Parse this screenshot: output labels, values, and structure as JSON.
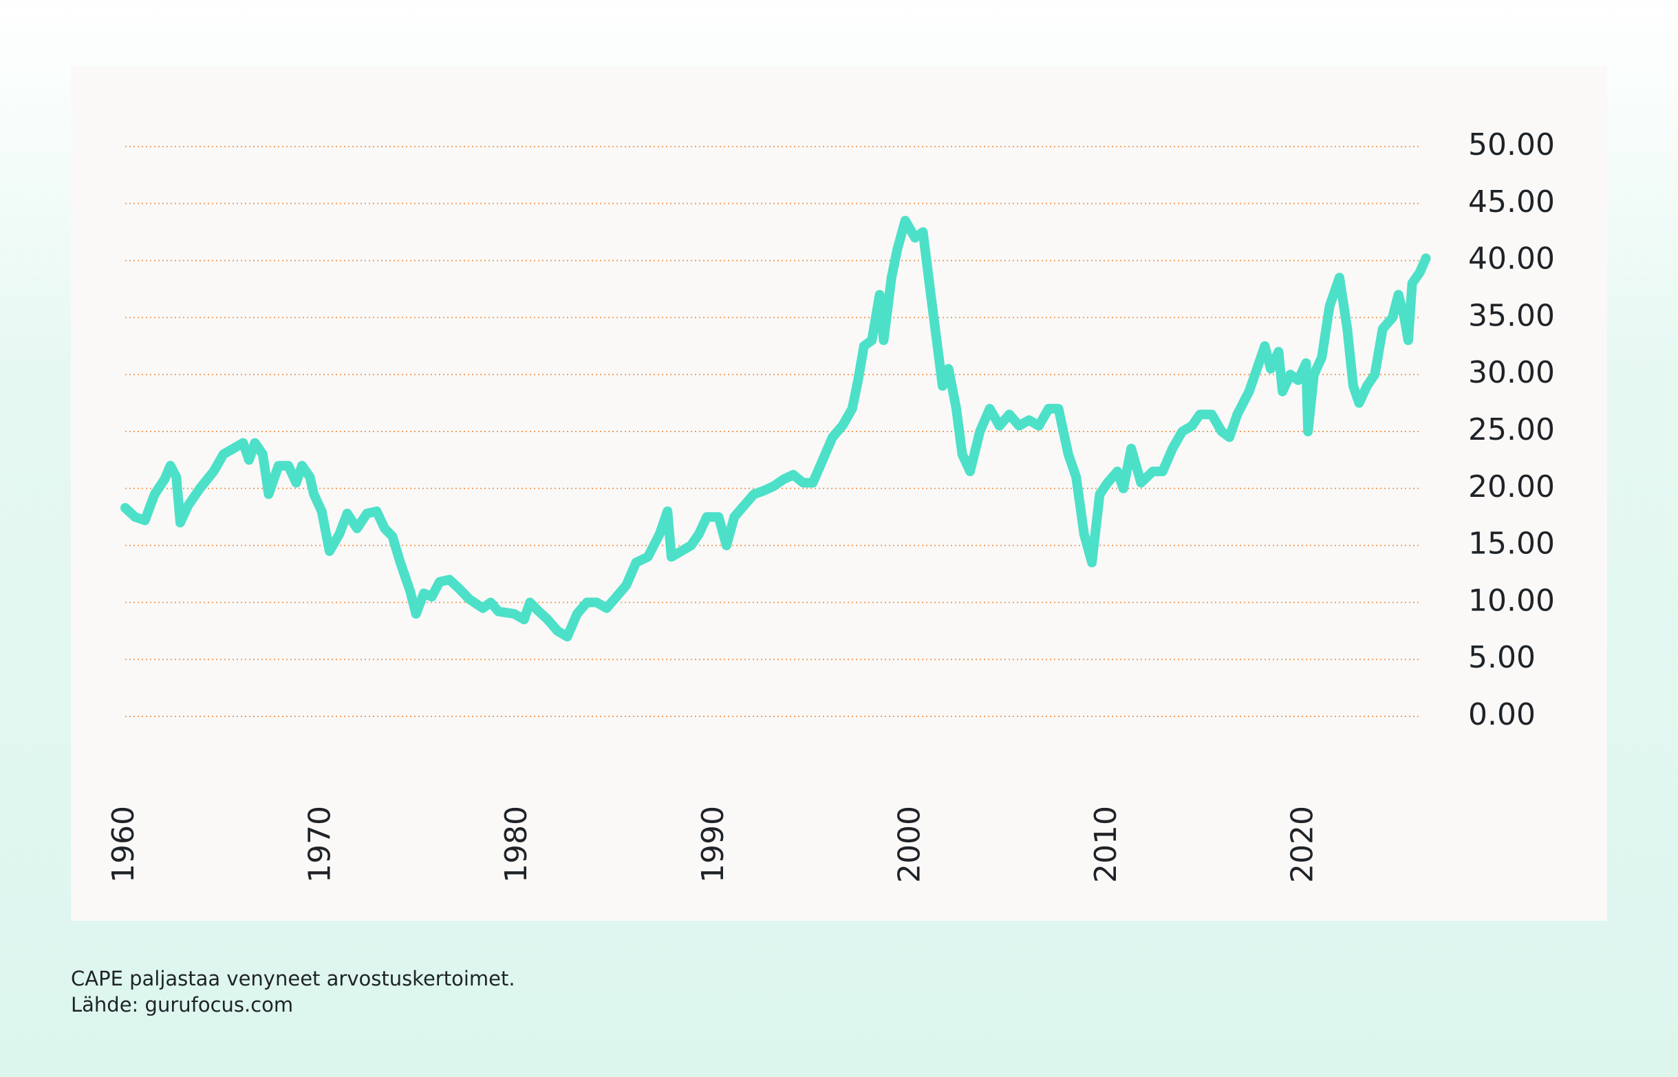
{
  "chart_data": {
    "type": "line",
    "notes": [
      "CAPE paljastaa venyneet arvostuskertoimet.",
      "Lähde: gurufocus.com"
    ],
    "xlim": [
      1960,
      2025.9
    ],
    "xticks": [
      1960,
      1970,
      1980,
      1990,
      2000,
      2010,
      2020
    ],
    "ylim": [
      0,
      50
    ],
    "yticks": [
      {
        "value": 0,
        "label": "0.00"
      },
      {
        "value": 5,
        "label": "5.00"
      },
      {
        "value": 10,
        "label": "10.00"
      },
      {
        "value": 15,
        "label": "15.00"
      },
      {
        "value": 20,
        "label": "20.00"
      },
      {
        "value": 25,
        "label": "25.00"
      },
      {
        "value": 30,
        "label": "30.00"
      },
      {
        "value": 35,
        "label": "35.00"
      },
      {
        "value": 40,
        "label": "40.00"
      },
      {
        "value": 45,
        "label": "45.00"
      },
      {
        "value": 50,
        "label": "50.00"
      }
    ],
    "grid": true,
    "grid_color": "#f0a060",
    "x": [
      1960,
      1960.5,
      1961,
      1961.5,
      1962,
      1962.3,
      1962.6,
      1962.8,
      1963.2,
      1963.8,
      1964.5,
      1965,
      1965.5,
      1966,
      1966.3,
      1966.6,
      1967,
      1967.3,
      1967.8,
      1968.3,
      1968.7,
      1969,
      1969.4,
      1969.6,
      1970,
      1970.4,
      1970.9,
      1971.3,
      1971.8,
      1972.3,
      1972.8,
      1973.2,
      1973.6,
      1974,
      1974.5,
      1974.8,
      1975.2,
      1975.6,
      1976,
      1976.5,
      1977,
      1977.5,
      1978.2,
      1978.6,
      1979,
      1979.8,
      1980.3,
      1980.6,
      1981,
      1981.5,
      1982,
      1982.5,
      1983,
      1983.5,
      1984,
      1984.5,
      1985,
      1985.5,
      1986,
      1986.6,
      1987.2,
      1987.6,
      1987.8,
      1988.3,
      1988.8,
      1989.2,
      1989.6,
      1990.2,
      1990.6,
      1991,
      1991.5,
      1992,
      1992.5,
      1993,
      1993.5,
      1994,
      1994.5,
      1995,
      1995.5,
      1996,
      1996.5,
      1997,
      1997.3,
      1997.6,
      1998,
      1998.4,
      1998.6,
      1999,
      1999.3,
      1999.7,
      2000.2,
      2000.6,
      2001,
      2001.3,
      2001.6,
      2001.9,
      2002.3,
      2002.6,
      2003,
      2003.5,
      2004,
      2004.5,
      2005,
      2005.5,
      2006,
      2006.5,
      2007,
      2007.5,
      2008,
      2008.4,
      2008.8,
      2009.2,
      2009.6,
      2010,
      2010.5,
      2010.8,
      2011.2,
      2011.7,
      2012.3,
      2012.8,
      2013.3,
      2013.8,
      2014.3,
      2014.7,
      2015.3,
      2015.8,
      2016.2,
      2016.6,
      2017.2,
      2017.6,
      2018,
      2018.3,
      2018.7,
      2018.9,
      2019.3,
      2019.7,
      2020.1,
      2020.2,
      2020.5,
      2020.9,
      2021.3,
      2021.8,
      2022.2,
      2022.5,
      2022.8,
      2023.2,
      2023.6,
      2024,
      2024.5,
      2024.8,
      2025.1,
      2025.3,
      2025.5,
      2025.9,
      2026.2
    ],
    "series": [
      {
        "color": "#4de0c8",
        "values": [
          18.3,
          17.5,
          17.2,
          19.5,
          20.8,
          22,
          21,
          17,
          18.5,
          20,
          21.5,
          23,
          23.5,
          24,
          22.5,
          24,
          23,
          19.5,
          22,
          22,
          20.5,
          22,
          21,
          19.5,
          18,
          14.5,
          16,
          17.8,
          16.5,
          17.8,
          18,
          16.5,
          15.8,
          13.5,
          11,
          9,
          10.8,
          10.5,
          11.8,
          12,
          11.2,
          10.3,
          9.5,
          10,
          9.2,
          9,
          8.5,
          10,
          9.3,
          8.5,
          7.5,
          7,
          9,
          10,
          10,
          9.5,
          10.5,
          11.5,
          13.5,
          14,
          16,
          18,
          14,
          14.5,
          15,
          16,
          17.5,
          17.5,
          15,
          17.5,
          18.5,
          19.5,
          19.8,
          20.2,
          20.8,
          21.2,
          20.5,
          20.5,
          22.5,
          24.5,
          25.5,
          27,
          29.5,
          32.5,
          33,
          37,
          33,
          38.5,
          41,
          43.5,
          42,
          42.5,
          37,
          33,
          29,
          30.5,
          27,
          23,
          21.5,
          25,
          27,
          25.5,
          26.5,
          25.5,
          26,
          25.5,
          27,
          27,
          23,
          21,
          16,
          13.5,
          19.5,
          20.5,
          21.5,
          20,
          23.5,
          20.5,
          21.5,
          21.5,
          23.5,
          25,
          25.5,
          26.5,
          26.5,
          25,
          24.5,
          26.5,
          28.5,
          30.5,
          32.5,
          30.5,
          32,
          28.5,
          30,
          29.5,
          31,
          25,
          30,
          31.5,
          36,
          38.5,
          34,
          29,
          27.5,
          29,
          30,
          34,
          35,
          37,
          35,
          33,
          38,
          39,
          40.2
        ]
      }
    ]
  }
}
